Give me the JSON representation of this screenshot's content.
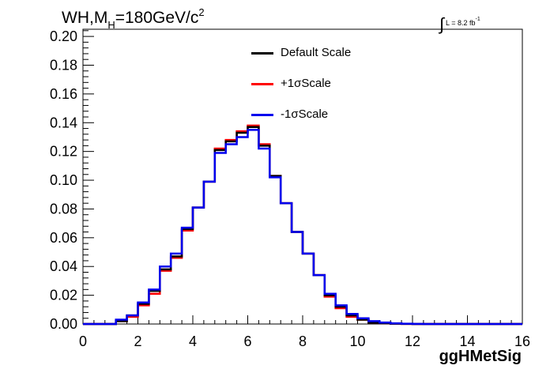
{
  "chart_data": {
    "type": "line",
    "title": {
      "main": "WH,M",
      "sub": "H",
      "after": "=180GeV/c",
      "sup": "2"
    },
    "luminosity": {
      "integral": "∫",
      "text": "L = 8.2 fb",
      "sup": "-1"
    },
    "xlabel": "ggHMetSig",
    "ylabel": "",
    "xlim": [
      0,
      16
    ],
    "ylim": [
      0,
      0.205
    ],
    "x_ticks": [
      "0",
      "2",
      "4",
      "6",
      "8",
      "10",
      "12",
      "14",
      "16"
    ],
    "y_ticks": [
      "0.00",
      "0.02",
      "0.04",
      "0.06",
      "0.08",
      "0.10",
      "0.12",
      "0.14",
      "0.16",
      "0.18",
      "0.20"
    ],
    "bin_edges": [
      0,
      0.4,
      0.8,
      1.2,
      1.6,
      2.0,
      2.4,
      2.8,
      3.2,
      3.6,
      4.0,
      4.4,
      4.8,
      5.2,
      5.6,
      6.0,
      6.4,
      6.8,
      7.2,
      7.6,
      8.0,
      8.4,
      8.8,
      9.2,
      9.6,
      10.0,
      10.4,
      10.8,
      11.2,
      11.6,
      12.0,
      12.4,
      12.8,
      13.2,
      13.6,
      14.0,
      14.4,
      14.8,
      15.2,
      15.6,
      16.0
    ],
    "series": [
      {
        "name": "Default Scale",
        "color": "#000000",
        "values": [
          0.0,
          0.0,
          0.0,
          0.002,
          0.006,
          0.014,
          0.023,
          0.038,
          0.047,
          0.066,
          0.081,
          0.099,
          0.121,
          0.127,
          0.133,
          0.137,
          0.124,
          0.103,
          0.084,
          0.064,
          0.049,
          0.034,
          0.02,
          0.012,
          0.006,
          0.003,
          0.001,
          0.0005,
          0.0002,
          0.0001,
          0.0,
          0.0,
          0.0,
          0.0,
          0.0,
          0.0,
          0.0,
          0.0,
          0.0,
          0.0
        ]
      },
      {
        "name": "+1σScale",
        "color": "#ff0000",
        "values": [
          0.0,
          0.0,
          0.0,
          0.002,
          0.005,
          0.013,
          0.021,
          0.037,
          0.046,
          0.065,
          0.081,
          0.099,
          0.122,
          0.128,
          0.134,
          0.138,
          0.125,
          0.103,
          0.084,
          0.064,
          0.049,
          0.034,
          0.019,
          0.011,
          0.005,
          0.003,
          0.001,
          0.0005,
          0.0002,
          0.0001,
          0.0,
          0.0,
          0.0,
          0.0,
          0.0,
          0.0,
          0.0,
          0.0,
          0.0,
          0.0
        ]
      },
      {
        "name": "-1σScale",
        "color": "#0000ee",
        "values": [
          0.0,
          0.0,
          0.0,
          0.003,
          0.006,
          0.015,
          0.024,
          0.04,
          0.049,
          0.067,
          0.081,
          0.099,
          0.119,
          0.125,
          0.13,
          0.135,
          0.122,
          0.102,
          0.084,
          0.064,
          0.049,
          0.034,
          0.021,
          0.013,
          0.007,
          0.004,
          0.002,
          0.001,
          0.0005,
          0.0002,
          0.0001,
          0.0,
          0.0,
          0.0,
          0.0,
          0.0,
          0.0,
          0.0,
          0.0,
          0.0
        ]
      }
    ],
    "legend_position": "top-center",
    "grid": false
  }
}
